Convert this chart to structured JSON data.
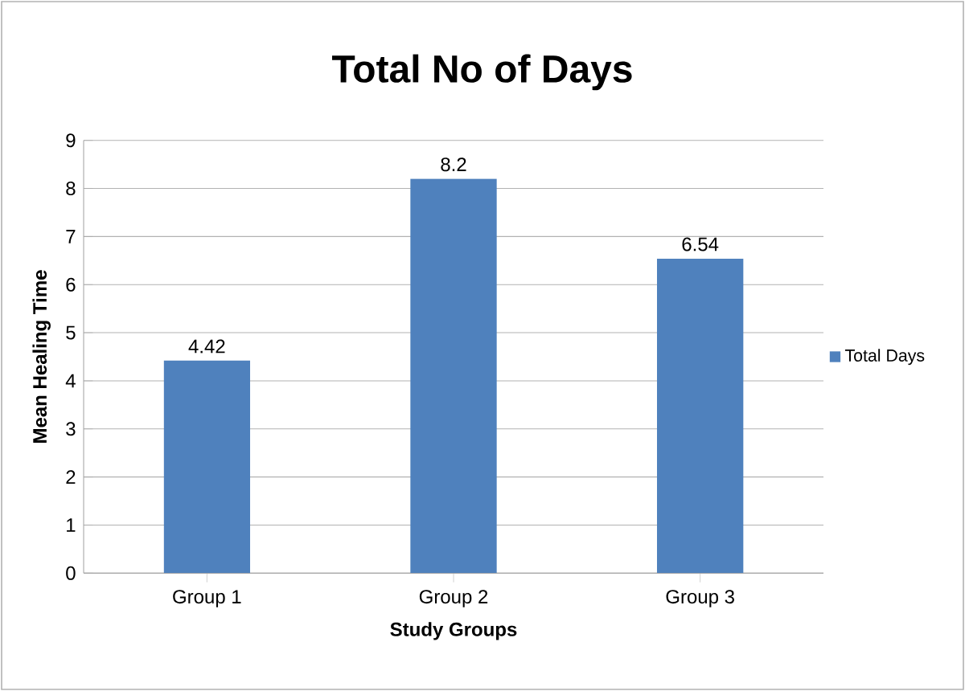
{
  "chart_data": {
    "type": "bar",
    "title": "Total No of Days",
    "xlabel": "Study Groups",
    "ylabel": "Mean Healing Time",
    "categories": [
      "Group 1",
      "Group 2",
      "Group 3"
    ],
    "series": [
      {
        "name": "Total Days",
        "color": "#4f81bd",
        "values": [
          4.42,
          8.2,
          6.54
        ]
      }
    ],
    "ylim": [
      0,
      9
    ],
    "yticks": [
      0,
      1,
      2,
      3,
      4,
      5,
      6,
      7,
      8,
      9
    ],
    "grid": "y",
    "legend": "right",
    "data_labels": true
  }
}
